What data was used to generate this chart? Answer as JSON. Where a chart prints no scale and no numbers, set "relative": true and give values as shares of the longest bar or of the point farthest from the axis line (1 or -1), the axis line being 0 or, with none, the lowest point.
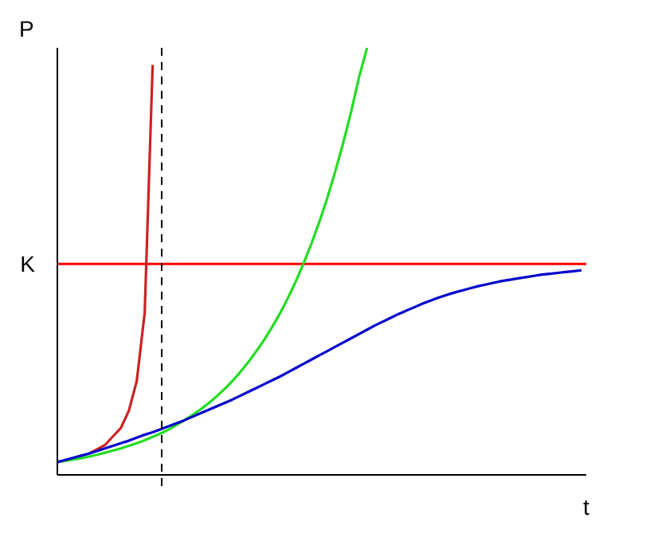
{
  "chart_data": {
    "type": "line",
    "relative": true,
    "xlabel": "t",
    "ylabel": "P",
    "grid": false,
    "legend": false,
    "marker": "none",
    "line_style": "solid",
    "categories": [
      null,
      null,
      null,
      null,
      null,
      null,
      null,
      null,
      null,
      null,
      null,
      null,
      null,
      null,
      null,
      null,
      null,
      null,
      null,
      null,
      null,
      null,
      null,
      null,
      null,
      null,
      null,
      null,
      null,
      null,
      null,
      null,
      null,
      null,
      null,
      null,
      null,
      null,
      null,
      null,
      null,
      null,
      null,
      null,
      null,
      null,
      null,
      null,
      null,
      null,
      null,
      null,
      null,
      null,
      null,
      null,
      null,
      null,
      null,
      null,
      null,
      null,
      null,
      null,
      null,
      null,
      null
    ],
    "series": [
      {
        "color": "#cc2222",
        "values": [
          null,
          null,
          null,
          null,
          0.05,
          0.06,
          0.07,
          0.09,
          0.11,
          0.15,
          0.22,
          0.38,
          0.96,
          null,
          null,
          null,
          null,
          null,
          null,
          null,
          null,
          null,
          null,
          null,
          null,
          null,
          null,
          null,
          null,
          null,
          null,
          null,
          null,
          null,
          null,
          null,
          null,
          null,
          null,
          null,
          null,
          null,
          null,
          null,
          null,
          null,
          null,
          null,
          null,
          null,
          null,
          null,
          null,
          null,
          null,
          null,
          null,
          null,
          null,
          null,
          null,
          null,
          null,
          null,
          null,
          null,
          null
        ]
      },
      {
        "color": "#22dd22",
        "values": [
          0.03,
          0.033,
          0.036,
          0.039,
          0.043,
          0.047,
          0.052,
          0.057,
          0.062,
          0.068,
          0.074,
          0.081,
          0.089,
          0.097,
          0.106,
          0.117,
          0.128,
          0.14,
          0.153,
          0.167,
          0.183,
          0.2,
          0.219,
          0.24,
          0.263,
          0.288,
          0.315,
          0.345,
          0.377,
          0.413,
          0.452,
          0.495,
          0.542,
          0.593,
          0.649,
          0.711,
          0.778,
          0.851,
          0.932,
          1.0,
          null,
          null,
          null,
          null,
          null,
          null,
          null,
          null,
          null,
          null,
          null,
          null,
          null,
          null,
          null,
          null,
          null,
          null,
          null,
          null,
          null,
          null,
          null,
          null,
          null,
          null,
          null
        ]
      },
      {
        "color": "#0000cc",
        "values": [
          0.03,
          0.035,
          0.04,
          0.045,
          0.05,
          0.056,
          0.062,
          0.068,
          0.074,
          0.08,
          0.087,
          0.094,
          0.1,
          0.107,
          0.114,
          0.121,
          0.128,
          0.136,
          0.144,
          0.152,
          0.16,
          0.168,
          0.176,
          0.185,
          0.194,
          0.203,
          0.212,
          0.221,
          0.23,
          0.24,
          0.25,
          0.26,
          0.27,
          0.28,
          0.29,
          0.3,
          0.31,
          0.32,
          0.33,
          0.34,
          0.35,
          0.359,
          0.368,
          0.377,
          0.385,
          0.393,
          0.401,
          0.408,
          0.415,
          0.421,
          0.427,
          0.432,
          0.437,
          0.442,
          0.446,
          0.45,
          0.454,
          0.457,
          0.46,
          0.463,
          0.466,
          0.469,
          0.471,
          0.473,
          0.475,
          0.477,
          0.479
        ]
      }
    ],
    "ref_lines": [
      {
        "axis": "y",
        "value": 0.494,
        "label": "K",
        "color": "#ff0000",
        "line_style": "solid"
      }
    ]
  }
}
